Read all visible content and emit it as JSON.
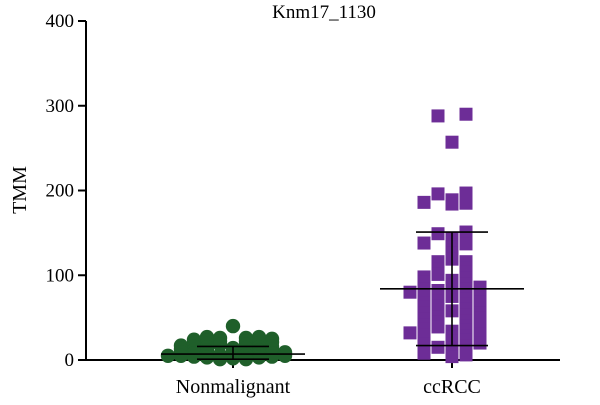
{
  "chart_data": {
    "type": "scatter",
    "title": "Knm17_1130",
    "ylabel": "TMM",
    "xlabel": "",
    "categories": [
      "Nonmalignant",
      "ccRCC"
    ],
    "ylim": [
      0,
      400
    ],
    "yticks": [
      0,
      100,
      200,
      300,
      400
    ],
    "grid": false,
    "series": [
      {
        "name": "Nonmalignant",
        "marker": "circle",
        "color": "#1f5f2a",
        "values": [
          40,
          27,
          27,
          26,
          26,
          25,
          24,
          24,
          23,
          22,
          22,
          21,
          20,
          20,
          19,
          18,
          18,
          17,
          16,
          16,
          15,
          15,
          14,
          14,
          13,
          12,
          12,
          11,
          11,
          10,
          10,
          9,
          9,
          8,
          8,
          7,
          7,
          6,
          6,
          5,
          5,
          5,
          4,
          4,
          3,
          3,
          2,
          2,
          1,
          1
        ],
        "summary": {
          "center": 7,
          "lower": 1,
          "upper": 16
        }
      },
      {
        "name": "ccRCC",
        "marker": "square",
        "color": "#6d2d97",
        "values": [
          290,
          288,
          257,
          197,
          196,
          189,
          186,
          185,
          184,
          151,
          149,
          144,
          138,
          137,
          136,
          133,
          126,
          119,
          116,
          116,
          109,
          107,
          104,
          101,
          98,
          97,
          94,
          92,
          90,
          88,
          86,
          84,
          84,
          82,
          80,
          79,
          78,
          77,
          75,
          72,
          70,
          68,
          67,
          66,
          64,
          62,
          60,
          58,
          56,
          55,
          53,
          51,
          50,
          48,
          46,
          45,
          43,
          41,
          40,
          39,
          37,
          35,
          34,
          32,
          31,
          30,
          28,
          27,
          25,
          24,
          22,
          20,
          19,
          17,
          15,
          14,
          12,
          10,
          8,
          6,
          4
        ],
        "summary": {
          "center": 84,
          "lower": 17,
          "upper": 151
        }
      }
    ],
    "colors": {
      "axis": "#000000",
      "nonmalignant": "#1f5f2a",
      "ccrcc": "#6d2d97"
    }
  }
}
